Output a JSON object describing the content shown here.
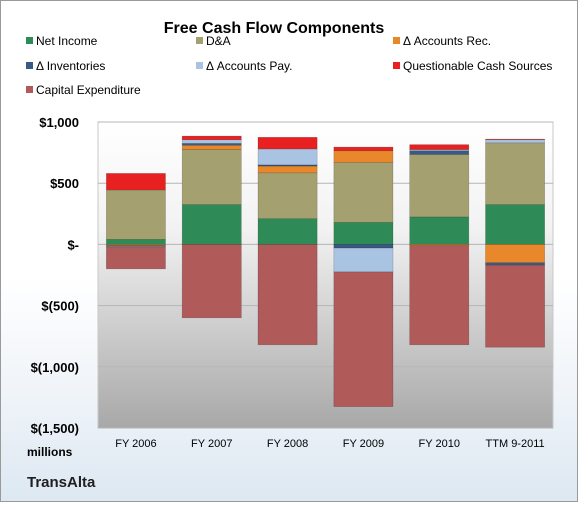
{
  "chart_data": {
    "type": "bar",
    "stacked": true,
    "title": "Free Cash Flow Components",
    "unit_label": "millions",
    "source_label": "TransAlta",
    "categories": [
      "FY 2006",
      "FY 2007",
      "FY 2008",
      "FY 2009",
      "FY 2010",
      "TTM 9-2011"
    ],
    "ylim": [
      -1500,
      1000
    ],
    "yticks": [
      1000,
      500,
      0,
      -500,
      -1000,
      -1500
    ],
    "ytick_labels": [
      "$1,000",
      "$500",
      "$-",
      "$(500)",
      "$(1,000)",
      "$(1,500)"
    ],
    "grid": true,
    "legend_position": "top",
    "series": [
      {
        "name": "Net Income",
        "color": "#2e8b57",
        "values": [
          40,
          325,
          210,
          180,
          225,
          325
        ]
      },
      {
        "name": "D&A",
        "color": "#a5a070",
        "values": [
          405,
          450,
          375,
          490,
          510,
          505
        ]
      },
      {
        "name": "Δ Accounts Rec.",
        "color": "#e9882a",
        "values": [
          -10,
          35,
          55,
          95,
          -10,
          -150
        ]
      },
      {
        "name": "Δ Inventories",
        "color": "#3a5a86",
        "values": [
          -5,
          15,
          10,
          -30,
          30,
          -20
        ]
      },
      {
        "name": "Δ Accounts Pay.",
        "color": "#a9c4e2",
        "values": [
          -5,
          30,
          130,
          -195,
          10,
          25
        ]
      },
      {
        "name": "Questionable Cash Sources",
        "color": "#e82020",
        "values": [
          135,
          30,
          95,
          30,
          40,
          5
        ]
      },
      {
        "name": "Capital Expenditure",
        "color": "#b05a5a",
        "values": [
          -180,
          -600,
          -820,
          -1100,
          -810,
          -670
        ]
      }
    ]
  }
}
